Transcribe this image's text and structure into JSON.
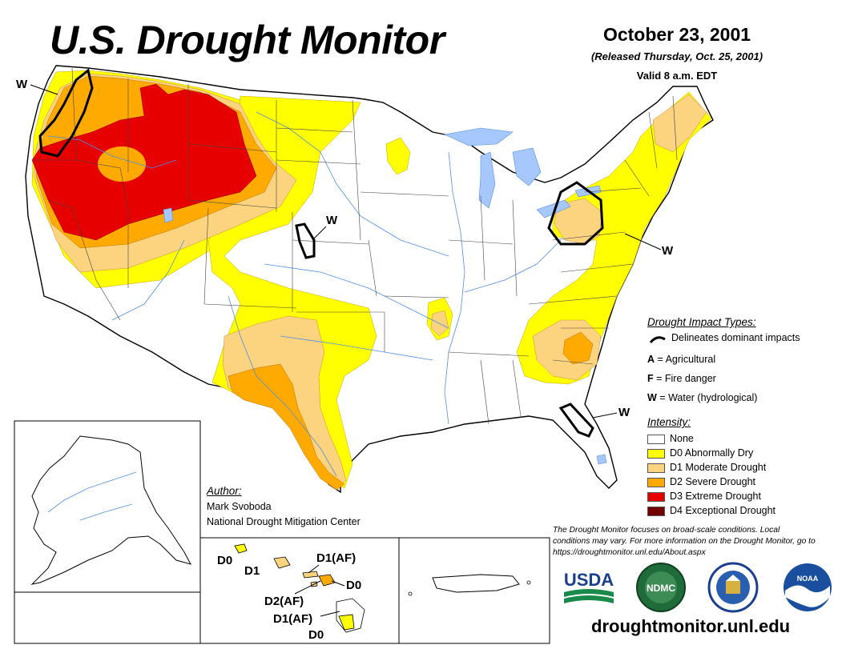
{
  "header": {
    "title": "U.S. Drought Monitor",
    "date": "October 23, 2001",
    "released": "(Released Thursday, Oct. 25, 2001)",
    "valid": "Valid 8 a.m. EDT"
  },
  "colors": {
    "none": "#ffffff",
    "d0": "#ffff00",
    "d1": "#fcd37f",
    "d2": "#ffaa00",
    "d3": "#e60000",
    "d4": "#730000",
    "water": "#a6c8ff",
    "river": "#4f8fe6"
  },
  "impact_legend": {
    "heading": "Drought Impact Types:",
    "delineates": "Delineates dominant impacts",
    "items": [
      {
        "code": "A",
        "label": "= Agricultural"
      },
      {
        "code": "F",
        "label": "= Fire danger"
      },
      {
        "code": "W",
        "label": "= Water (hydrological)"
      }
    ]
  },
  "intensity_legend": {
    "heading": "Intensity:",
    "items": [
      {
        "label": "None",
        "color": "#ffffff"
      },
      {
        "label": "D0 Abnormally Dry",
        "color": "#ffff00"
      },
      {
        "label": "D1 Moderate Drought",
        "color": "#fcd37f"
      },
      {
        "label": "D2 Severe Drought",
        "color": "#ffaa00"
      },
      {
        "label": "D3 Extreme Drought",
        "color": "#e60000"
      },
      {
        "label": "D4 Exceptional Drought",
        "color": "#730000"
      }
    ]
  },
  "map_labels": {
    "w_northwest": "W",
    "w_nebraska": "W",
    "w_midatlantic": "W",
    "w_florida": "W"
  },
  "hawaii_labels": {
    "kauai": "D0",
    "oahu": "D1",
    "molokai": "D1(AF)",
    "maui_west": "D2(AF)",
    "maui_east": "D0",
    "big_island_west": "D1(AF)",
    "big_island_east": "D0"
  },
  "author": {
    "heading": "Author:",
    "name": "Mark Svoboda",
    "organization": "National Drought Mitigation Center"
  },
  "disclaimer": "The Drought Monitor focuses on broad-scale conditions. Local conditions may vary. For more information on the Drought Monitor, go to https://droughtmonitor.unl.edu/About.aspx",
  "logos": {
    "usda": "USDA",
    "ndmc": "NDMC",
    "noaa": "NOAA"
  },
  "icons": [
    "impact-line-icon",
    "usda-logo",
    "ndmc-logo",
    "commerce-seal-logo",
    "noaa-logo"
  ],
  "website": "droughtmonitor.unl.edu"
}
